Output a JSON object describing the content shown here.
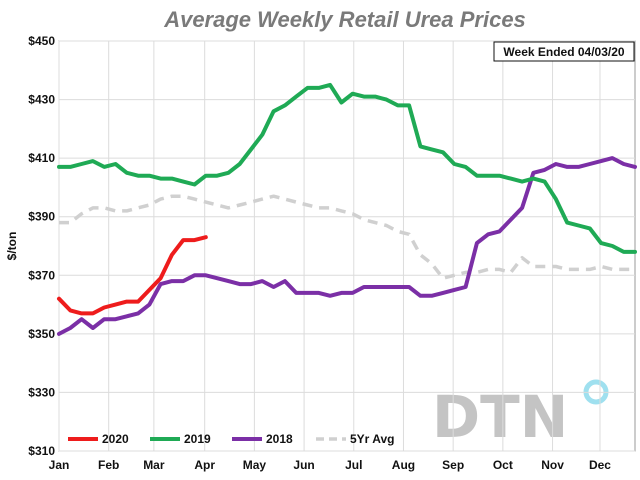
{
  "chart_data": {
    "type": "line",
    "title": "Average Weekly Retail Urea Prices",
    "annotation": "Week Ended 04/03/20",
    "watermark": "DTN",
    "ylabel": "$/ton",
    "xlabel": "",
    "ylim": [
      310,
      450
    ],
    "yticks": [
      310,
      330,
      350,
      370,
      390,
      410,
      430,
      450
    ],
    "ytick_labels": [
      "$310",
      "$330",
      "$350",
      "$370",
      "$390",
      "$410",
      "$430",
      "$450"
    ],
    "xlim": [
      1,
      52
    ],
    "x_ticks": [
      {
        "label": "Jan",
        "week": 1
      },
      {
        "label": "Feb",
        "week": 5.4
      },
      {
        "label": "Mar",
        "week": 9.4
      },
      {
        "label": "Apr",
        "week": 13.9
      },
      {
        "label": "May",
        "week": 18.3
      },
      {
        "label": "Jun",
        "week": 22.7
      },
      {
        "label": "Jul",
        "week": 27.1
      },
      {
        "label": "Aug",
        "week": 31.5
      },
      {
        "label": "Sep",
        "week": 35.9
      },
      {
        "label": "Oct",
        "week": 40.3
      },
      {
        "label": "Nov",
        "week": 44.7
      },
      {
        "label": "Dec",
        "week": 48.9
      }
    ],
    "grid": true,
    "legend_position": "bottom-left",
    "series": [
      {
        "name": "2020",
        "color": "#ee1c1c",
        "dash": false,
        "x": [
          1,
          2,
          3,
          4,
          5,
          6,
          7,
          8,
          9,
          10,
          11,
          12,
          13,
          14
        ],
        "values": [
          362,
          358,
          357,
          357,
          359,
          360,
          361,
          361,
          365,
          369,
          377,
          382,
          382,
          383
        ]
      },
      {
        "name": "2019",
        "color": "#1faa55",
        "dash": false,
        "x": [
          1,
          2,
          3,
          4,
          5,
          6,
          7,
          8,
          9,
          10,
          11,
          12,
          13,
          14,
          15,
          16,
          17,
          18,
          19,
          20,
          21,
          22,
          23,
          24,
          25,
          26,
          27,
          28,
          29,
          30,
          31,
          32,
          33,
          34,
          35,
          36,
          37,
          38,
          39,
          40,
          41,
          42,
          43,
          44,
          45,
          46,
          47,
          48,
          49,
          50,
          51,
          52
        ],
        "values": [
          407,
          407,
          408,
          409,
          407,
          408,
          405,
          404,
          404,
          403,
          403,
          402,
          401,
          404,
          404,
          405,
          408,
          413,
          418,
          426,
          428,
          431,
          434,
          434,
          435,
          429,
          432,
          431,
          431,
          430,
          428,
          428,
          414,
          413,
          412,
          408,
          407,
          404,
          404,
          404,
          403,
          402,
          403,
          402,
          396,
          388,
          387,
          386,
          381,
          380,
          378,
          378
        ]
      },
      {
        "name": "2018",
        "color": "#7b2fa6",
        "dash": false,
        "x": [
          1,
          2,
          3,
          4,
          5,
          6,
          7,
          8,
          9,
          10,
          11,
          12,
          13,
          14,
          15,
          16,
          17,
          18,
          19,
          20,
          21,
          22,
          23,
          24,
          25,
          26,
          27,
          28,
          29,
          30,
          31,
          32,
          33,
          34,
          35,
          36,
          37,
          38,
          39,
          40,
          41,
          42,
          43,
          44,
          45,
          46,
          47,
          48,
          49,
          50,
          51,
          52
        ],
        "values": [
          350,
          352,
          355,
          352,
          355,
          355,
          356,
          357,
          360,
          367,
          368,
          368,
          370,
          370,
          369,
          368,
          367,
          367,
          368,
          366,
          368,
          364,
          364,
          364,
          363,
          364,
          364,
          366,
          366,
          366,
          366,
          366,
          363,
          363,
          364,
          365,
          366,
          381,
          384,
          385,
          389,
          393,
          405,
          406,
          408,
          407,
          407,
          408,
          409,
          410,
          408,
          407
        ]
      },
      {
        "name": "5Yr Avg",
        "color": "#d0d0d0",
        "dash": true,
        "x": [
          1,
          2,
          3,
          4,
          5,
          6,
          7,
          8,
          9,
          10,
          11,
          12,
          13,
          14,
          15,
          16,
          17,
          18,
          19,
          20,
          21,
          22,
          23,
          24,
          25,
          26,
          27,
          28,
          29,
          30,
          31,
          32,
          33,
          34,
          35,
          36,
          37,
          38,
          39,
          40,
          41,
          42,
          43,
          44,
          45,
          46,
          47,
          48,
          49,
          50,
          51,
          52
        ],
        "values": [
          388,
          388,
          391,
          393,
          393,
          392,
          392,
          393,
          394,
          396,
          397,
          397,
          396,
          395,
          394,
          393,
          394,
          395,
          396,
          397,
          396,
          395,
          394,
          393,
          393,
          392,
          391,
          389,
          388,
          387,
          385,
          384,
          377,
          374,
          369,
          370,
          371,
          371,
          372,
          372,
          371,
          376,
          373,
          373,
          373,
          372,
          372,
          372,
          373,
          372,
          372,
          372
        ]
      }
    ]
  }
}
